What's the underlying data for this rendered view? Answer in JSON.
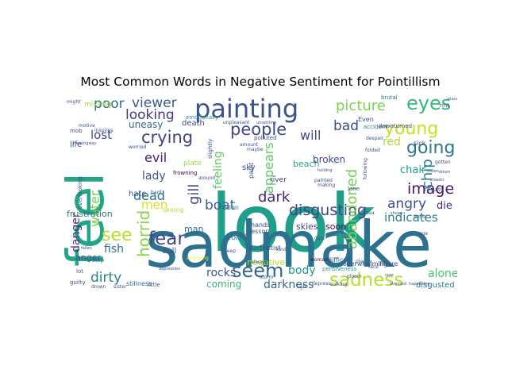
{
  "figure": {
    "title": "Most Common Words in Negative Sentiment for Pointillism"
  },
  "colors": {
    "background": "#ffffff",
    "palette": [
      "#440154",
      "#472d7b",
      "#3b528b",
      "#2c728e",
      "#21918c",
      "#28ae80",
      "#5ec962",
      "#addc30",
      "#fde725"
    ]
  },
  "words": [
    {
      "text": "look",
      "color": "#1f9e89"
    },
    {
      "text": "sadmake",
      "color": "#2c728e"
    },
    {
      "text": "feel",
      "color": "#21a685"
    },
    {
      "text": "painting",
      "color": "#3b528b"
    },
    {
      "text": "eyes",
      "color": "#35b779"
    },
    {
      "text": "people",
      "color": "#3e4989"
    },
    {
      "text": "seem",
      "color": "#31688e"
    },
    {
      "text": "sadness",
      "color": "#b5de2b"
    },
    {
      "text": "crying",
      "color": "#404387"
    },
    {
      "text": "young",
      "color": "#c8e020"
    },
    {
      "text": "picture",
      "color": "#7fd34e"
    },
    {
      "text": "disgusting",
      "color": "#414487"
    },
    {
      "text": "fear",
      "color": "#3f4788"
    },
    {
      "text": "image",
      "color": "#48186a"
    },
    {
      "text": "going",
      "color": "#2a788e"
    },
    {
      "text": "angry",
      "color": "#3b528b"
    },
    {
      "text": "dirty",
      "color": "#26828e"
    },
    {
      "text": "viewer",
      "color": "#38598c"
    },
    {
      "text": "looking",
      "color": "#443a83"
    },
    {
      "text": "dark",
      "color": "#482677"
    },
    {
      "text": "see",
      "color": "#b8de29"
    },
    {
      "text": "boat",
      "color": "#355f8d"
    },
    {
      "text": "dead",
      "color": "#2d708e"
    },
    {
      "text": "evil",
      "color": "#482173"
    },
    {
      "text": "horrid",
      "color": "#86d549"
    },
    {
      "text": "abandoned",
      "color": "#75d054"
    },
    {
      "text": "appears",
      "color": "#5ec962"
    },
    {
      "text": "gill",
      "color": "#3f4788"
    },
    {
      "text": "chip",
      "color": "#287d8e"
    },
    {
      "text": "poor",
      "color": "#2d708e"
    },
    {
      "text": "bad",
      "color": "#3d4d8a"
    },
    {
      "text": "water",
      "color": "#7ad151"
    },
    {
      "text": "men",
      "color": "#d8e219"
    },
    {
      "text": "lost",
      "color": "#3e4a89"
    },
    {
      "text": "will",
      "color": "#3f4889"
    },
    {
      "text": "red",
      "color": "#addc30"
    },
    {
      "text": "fish",
      "color": "#2c728e"
    },
    {
      "text": "darkness",
      "color": "#32648e"
    },
    {
      "text": "rocks",
      "color": "#3b528b"
    },
    {
      "text": "body",
      "color": "#1f988b"
    },
    {
      "text": "alone",
      "color": "#46c06f"
    },
    {
      "text": "lady",
      "color": "#3b528b"
    },
    {
      "text": "uneasy",
      "color": "#31688e"
    },
    {
      "text": "feeling",
      "color": "#5ec962"
    },
    {
      "text": "indicates",
      "color": "#26828e"
    },
    {
      "text": "danger",
      "color": "#472c7a"
    },
    {
      "text": "die",
      "color": "#482878"
    },
    {
      "text": "chair",
      "color": "#1f9a8a"
    },
    {
      "text": "coming",
      "color": "#35b779"
    },
    {
      "text": "seeing",
      "color": "#addc30"
    },
    {
      "text": "frustration",
      "color": "#2c728e"
    },
    {
      "text": "anger",
      "color": "#3e4a89"
    },
    {
      "text": "death",
      "color": "#3e4a89"
    },
    {
      "text": "missing",
      "color": "#a5db36"
    },
    {
      "text": "disgusted",
      "color": "#2a788e"
    },
    {
      "text": "plate",
      "color": "#9bd93c"
    },
    {
      "text": "sky",
      "color": "#3b528b"
    },
    {
      "text": "beach",
      "color": "#20a386"
    },
    {
      "text": "broken",
      "color": "#3e4989"
    },
    {
      "text": "skies",
      "color": "#404688"
    },
    {
      "text": "soon",
      "color": "#470d60"
    },
    {
      "text": "man",
      "color": "#2c728e"
    },
    {
      "text": "world",
      "color": "#31688e"
    },
    {
      "text": "negative",
      "color": "#b5de2b"
    },
    {
      "text": "life",
      "color": "#3b528b"
    },
    {
      "text": "hate",
      "color": "#38598c"
    },
    {
      "text": "dull",
      "color": "#3b528b"
    },
    {
      "text": "frowning",
      "color": "#440154"
    },
    {
      "text": "eden",
      "color": "#2c728e"
    },
    {
      "text": "hands",
      "color": "#404387"
    },
    {
      "text": "river",
      "color": "#46337f"
    },
    {
      "text": "paint",
      "color": "#3b528b"
    },
    {
      "text": "portraitist",
      "color": "#3b528b"
    },
    {
      "text": "lesson",
      "color": "#3b528b"
    },
    {
      "text": "pensiveness",
      "color": "#1f988b"
    },
    {
      "text": "difficult",
      "color": "#38598c"
    },
    {
      "text": "woman",
      "color": "#440154"
    },
    {
      "text": "overwhelming",
      "color": "#3b528b"
    },
    {
      "text": "figure",
      "color": "#3b528b"
    },
    {
      "text": "Even",
      "color": "#3b528b"
    },
    {
      "text": "accident",
      "color": "#287d8e"
    },
    {
      "text": "downturned",
      "color": "#3e4a89"
    },
    {
      "text": "emotionally",
      "color": "#1f988b"
    },
    {
      "text": "stop",
      "color": "#2c728e"
    },
    {
      "text": "lot",
      "color": "#3b528b"
    },
    {
      "text": "guilty",
      "color": "#3b528b"
    },
    {
      "text": "drown",
      "color": "#3b528b"
    },
    {
      "text": "sister",
      "color": "#3b528b"
    },
    {
      "text": "stillness",
      "color": "#2c728e"
    },
    {
      "text": "little",
      "color": "#3b528b"
    },
    {
      "text": "depress",
      "color": "#3b528b"
    },
    {
      "text": "sulking",
      "color": "#3b528b"
    },
    {
      "text": "results",
      "color": "#3b528b"
    },
    {
      "text": "sick",
      "color": "#3b528b"
    },
    {
      "text": "brutal",
      "color": "#2c728e"
    },
    {
      "text": "rint",
      "color": "#3b528b"
    },
    {
      "text": "lone",
      "color": "#3b528b"
    },
    {
      "text": "face",
      "color": "#3b528b"
    },
    {
      "text": "plague",
      "color": "#2c728e"
    },
    {
      "text": "gloom",
      "color": "#3b528b"
    },
    {
      "text": "clouds",
      "color": "#5ec962"
    },
    {
      "text": "dots",
      "color": "#3b528b"
    },
    {
      "text": "motive",
      "color": "#3b528b"
    },
    {
      "text": "inspires",
      "color": "#3b528b"
    },
    {
      "text": "polluted",
      "color": "#3b528b"
    },
    {
      "text": "amount",
      "color": "#3b528b"
    },
    {
      "text": "maybe",
      "color": "#3b528b"
    },
    {
      "text": "following",
      "color": "#3b528b"
    },
    {
      "text": "folded",
      "color": "#3b528b"
    },
    {
      "text": "despair",
      "color": "#3b528b"
    },
    {
      "text": "gotten",
      "color": "#3b528b"
    },
    {
      "text": "place",
      "color": "#3b528b"
    },
    {
      "text": "painted",
      "color": "#3b528b"
    },
    {
      "text": "making",
      "color": "#3b528b"
    },
    {
      "text": "slightly",
      "color": "#3b528b"
    },
    {
      "text": "always",
      "color": "#3b528b"
    },
    {
      "text": "annoying",
      "color": "#fde725"
    },
    {
      "text": "depression",
      "color": "#3b528b"
    },
    {
      "text": "sure",
      "color": "#3b528b"
    },
    {
      "text": "stressed",
      "color": "#3b528b"
    },
    {
      "text": "happening",
      "color": "#3b528b"
    },
    {
      "text": "sea",
      "color": "#3b528b"
    },
    {
      "text": "age",
      "color": "#3b528b"
    },
    {
      "text": "shows",
      "color": "#3b528b"
    },
    {
      "text": "Hemingway",
      "color": "#3b528b"
    },
    {
      "text": "doom",
      "color": "#3b528b"
    },
    {
      "text": "chaotic",
      "color": "#3b528b"
    },
    {
      "text": "fallen",
      "color": "#3b528b"
    },
    {
      "text": "around",
      "color": "#3b528b"
    },
    {
      "text": "deep",
      "color": "#3b528b"
    },
    {
      "text": "kind",
      "color": "#3b528b"
    },
    {
      "text": "ugh",
      "color": "#3b528b"
    },
    {
      "text": "storm",
      "color": "#3b528b"
    },
    {
      "text": "overlooking",
      "color": "#3b528b"
    },
    {
      "text": "worried",
      "color": "#3b528b"
    },
    {
      "text": "hard",
      "color": "#3b528b"
    },
    {
      "text": "mob",
      "color": "#3b528b"
    },
    {
      "text": "might",
      "color": "#3b528b"
    },
    {
      "text": "unsettling",
      "color": "#3b528b"
    },
    {
      "text": "unpleasant",
      "color": "#3b528b"
    },
    {
      "text": "sullen",
      "color": "#3b528b"
    },
    {
      "text": "holding",
      "color": "#3b528b"
    },
    {
      "text": "wrong",
      "color": "#3b528b"
    }
  ]
}
